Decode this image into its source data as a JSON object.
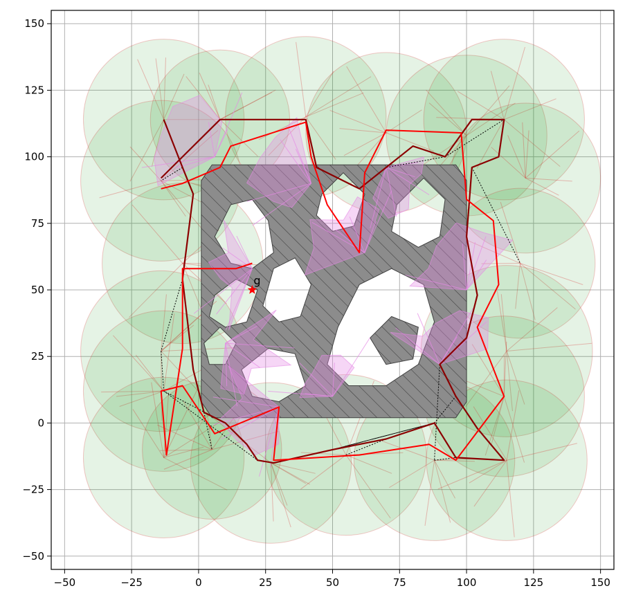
{
  "chart_data": {
    "type": "scatter",
    "title": "",
    "xlabel": "",
    "ylabel": "",
    "xlim": [
      -55,
      155
    ],
    "ylim": [
      -55,
      155
    ],
    "x_ticks": [
      -50,
      -25,
      0,
      25,
      50,
      75,
      100,
      125,
      150
    ],
    "y_ticks": [
      -50,
      -25,
      0,
      25,
      50,
      75,
      100,
      125,
      150
    ],
    "x_tick_labels": [
      "−50",
      "−25",
      "0",
      "25",
      "50",
      "75",
      "100",
      "125",
      "150"
    ],
    "y_tick_labels": [
      "−50",
      "−25",
      "0",
      "25",
      "50",
      "75",
      "100",
      "125",
      "150"
    ],
    "grid": true,
    "colors": {
      "obstacle_fill": "#8c8c8c",
      "obstacle_edge": "#404040",
      "visibility_fill": "#e58ae5",
      "sensor_disc_fill": "#2ca02c",
      "sensor_disc_edge": "#d62728",
      "path_bright": "#ff0000",
      "path_dark": "#8b0000",
      "dotted_edges": "#000000",
      "goal_marker": "#ff0000"
    },
    "goal": {
      "label": "g",
      "x": 20,
      "y": 50
    },
    "sensor_discs": [
      {
        "x": -13,
        "y": 114,
        "r": 30
      },
      {
        "x": 8,
        "y": 114,
        "r": 26
      },
      {
        "x": 40,
        "y": 115,
        "r": 30
      },
      {
        "x": 70,
        "y": 109,
        "r": 30
      },
      {
        "x": 100,
        "y": 108,
        "r": 30
      },
      {
        "x": 114,
        "y": 114,
        "r": 30
      },
      {
        "x": -14,
        "y": 91,
        "r": 30
      },
      {
        "x": 122,
        "y": 92,
        "r": 28
      },
      {
        "x": -6,
        "y": 60,
        "r": 30
      },
      {
        "x": 120,
        "y": 60,
        "r": 28
      },
      {
        "x": -14,
        "y": 27,
        "r": 30
      },
      {
        "x": 115,
        "y": 27,
        "r": 32
      },
      {
        "x": -13,
        "y": 12,
        "r": 30
      },
      {
        "x": 114,
        "y": 10,
        "r": 30
      },
      {
        "x": -13,
        "y": -13,
        "r": 30
      },
      {
        "x": 27,
        "y": -15,
        "r": 30
      },
      {
        "x": 55,
        "y": -12,
        "r": 30
      },
      {
        "x": 88,
        "y": -14,
        "r": 30
      },
      {
        "x": 115,
        "y": -14,
        "r": 30
      },
      {
        "x": 5,
        "y": -10,
        "r": 26
      }
    ],
    "obstacle_region": {
      "x_min": 1,
      "x_max": 100,
      "y_min": 2,
      "y_max": 97
    },
    "inner_free_regions": [
      [
        [
          6,
          70
        ],
        [
          12,
          82
        ],
        [
          20,
          84
        ],
        [
          26,
          76
        ],
        [
          28,
          64
        ],
        [
          20,
          58
        ],
        [
          12,
          60
        ]
      ],
      [
        [
          28,
          58
        ],
        [
          36,
          62
        ],
        [
          42,
          52
        ],
        [
          38,
          40
        ],
        [
          30,
          38
        ],
        [
          24,
          44
        ]
      ],
      [
        [
          6,
          48
        ],
        [
          14,
          54
        ],
        [
          22,
          50
        ],
        [
          18,
          38
        ],
        [
          10,
          36
        ],
        [
          4,
          40
        ]
      ],
      [
        [
          46,
          86
        ],
        [
          54,
          94
        ],
        [
          62,
          86
        ],
        [
          58,
          74
        ],
        [
          50,
          72
        ],
        [
          44,
          78
        ]
      ],
      [
        [
          52,
          36
        ],
        [
          60,
          52
        ],
        [
          72,
          58
        ],
        [
          84,
          52
        ],
        [
          88,
          38
        ],
        [
          82,
          22
        ],
        [
          70,
          14
        ],
        [
          56,
          14
        ],
        [
          48,
          22
        ]
      ],
      [
        [
          74,
          82
        ],
        [
          84,
          92
        ],
        [
          92,
          84
        ],
        [
          90,
          70
        ],
        [
          82,
          66
        ],
        [
          72,
          72
        ]
      ],
      [
        [
          16,
          20
        ],
        [
          26,
          28
        ],
        [
          36,
          26
        ],
        [
          40,
          14
        ],
        [
          30,
          8
        ],
        [
          20,
          10
        ]
      ],
      [
        [
          2,
          30
        ],
        [
          8,
          36
        ],
        [
          14,
          30
        ],
        [
          10,
          22
        ],
        [
          4,
          22
        ]
      ],
      [
        [
          64,
          32
        ],
        [
          72,
          40
        ],
        [
          82,
          36
        ],
        [
          80,
          24
        ],
        [
          70,
          22
        ]
      ]
    ],
    "path_red": [
      [
        -14,
        88
      ],
      [
        -6,
        90
      ],
      [
        8,
        96
      ],
      [
        12,
        104
      ],
      [
        40,
        113
      ],
      [
        42,
        100
      ],
      [
        48,
        82
      ],
      [
        60,
        64
      ],
      [
        62,
        94
      ],
      [
        70,
        110
      ],
      [
        98,
        109
      ],
      [
        100,
        84
      ],
      [
        110,
        76
      ],
      [
        112,
        52
      ],
      [
        104,
        36
      ],
      [
        114,
        10
      ],
      [
        96,
        -14
      ],
      [
        86,
        -8
      ],
      [
        60,
        -12
      ],
      [
        28,
        -14
      ],
      [
        30,
        6
      ],
      [
        6,
        -4
      ],
      [
        -6,
        14
      ],
      [
        -14,
        12
      ],
      [
        -12,
        -12
      ],
      [
        -6,
        28
      ],
      [
        -6,
        58
      ],
      [
        14,
        58
      ],
      [
        20,
        60
      ]
    ],
    "path_dark": [
      [
        -13,
        114
      ],
      [
        -6,
        96
      ],
      [
        -2,
        86
      ],
      [
        -6,
        54
      ],
      [
        -2,
        20
      ],
      [
        2,
        4
      ],
      [
        10,
        0
      ],
      [
        18,
        -8
      ],
      [
        22,
        -14
      ],
      [
        28,
        -15
      ],
      [
        50,
        -10
      ],
      [
        70,
        -6
      ],
      [
        88,
        0
      ],
      [
        96,
        -13
      ],
      [
        114,
        -14
      ],
      [
        104,
        -2
      ],
      [
        96,
        10
      ],
      [
        90,
        22
      ],
      [
        100,
        32
      ],
      [
        104,
        48
      ],
      [
        100,
        70
      ],
      [
        102,
        96
      ],
      [
        112,
        100
      ],
      [
        114,
        114
      ],
      [
        102,
        114
      ],
      [
        92,
        100
      ],
      [
        80,
        104
      ],
      [
        70,
        96
      ],
      [
        60,
        88
      ],
      [
        44,
        96
      ],
      [
        40,
        114
      ],
      [
        8,
        114
      ],
      [
        -14,
        92
      ]
    ]
  }
}
